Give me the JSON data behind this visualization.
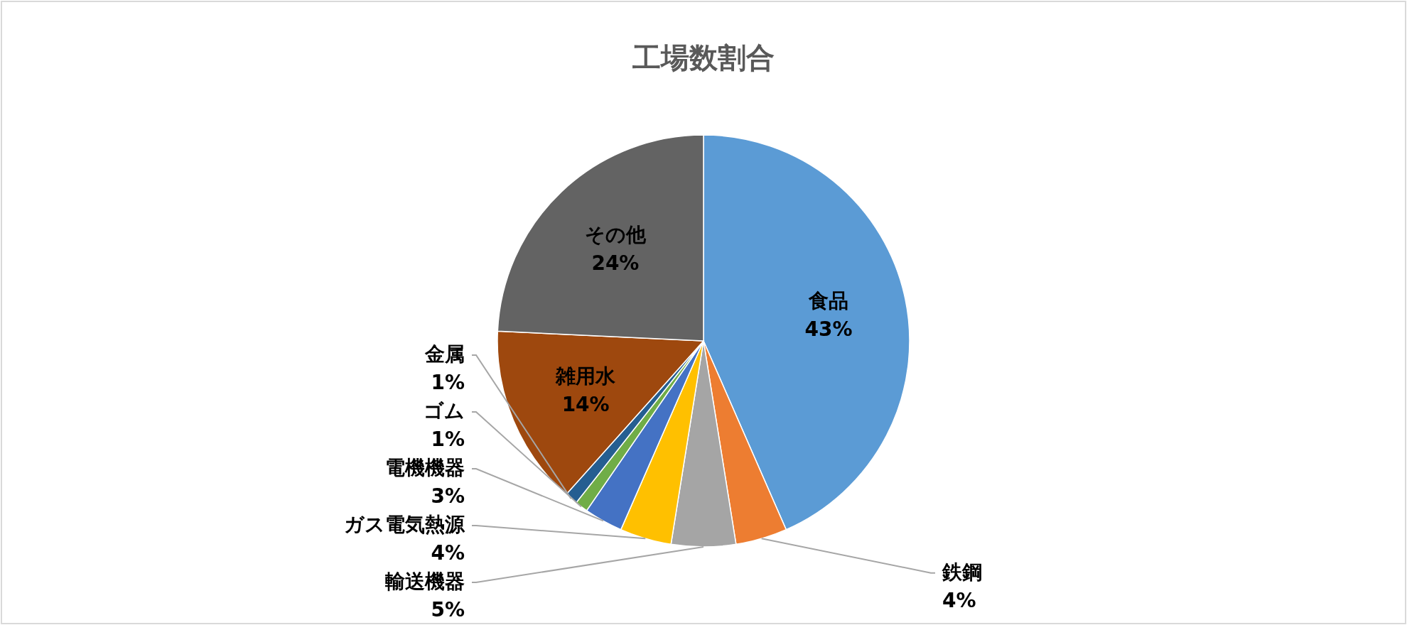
{
  "chart_data": {
    "type": "pie",
    "title": "工場数割合",
    "categories": [
      "食品",
      "鉄鋼",
      "輸送機器",
      "ガス電気熱源",
      "電機機器",
      "ゴム",
      "金属",
      "雑用水",
      "その他"
    ],
    "values": [
      43,
      4,
      5,
      4,
      3,
      1,
      1,
      14,
      24
    ],
    "value_labels": [
      "43%",
      "4%",
      "5%",
      "4%",
      "3%",
      "1%",
      "1%",
      "14%",
      "24%"
    ],
    "colors": [
      "#5b9bd5",
      "#ed7d31",
      "#a5a5a5",
      "#ffc000",
      "#4472c4",
      "#70ad47",
      "#255e91",
      "#9e480e",
      "#636363"
    ]
  }
}
